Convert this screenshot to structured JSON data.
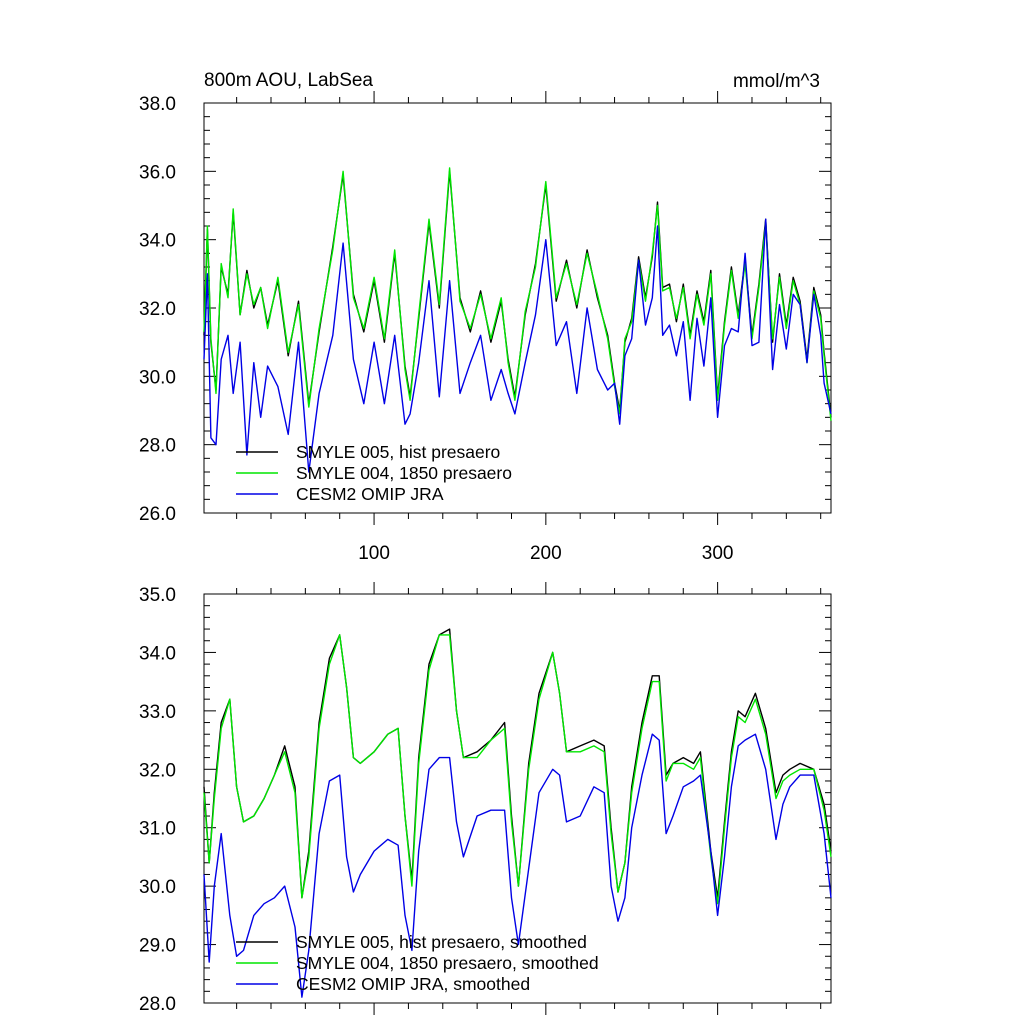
{
  "chart_data": [
    {
      "type": "line",
      "title": "800m AOU, LabSea",
      "units": "mmol/m^3",
      "xlim": [
        1,
        366
      ],
      "ylim": [
        26,
        38
      ],
      "x_tick_labels": [
        "100",
        "200",
        "300"
      ],
      "x_tick_values": [
        100,
        200,
        300
      ],
      "y_tick_labels": [
        "26.0",
        "28.0",
        "30.0",
        "32.0",
        "34.0",
        "36.0",
        "38.0"
      ],
      "y_tick_values": [
        26,
        28,
        30,
        32,
        34,
        36,
        38
      ],
      "series": [
        {
          "name": "SMYLE 005, hist presaero",
          "color": "#000000",
          "x": [
            1,
            3,
            5,
            8,
            11,
            15,
            18,
            22,
            26,
            30,
            34,
            38,
            44,
            50,
            56,
            62,
            68,
            76,
            82,
            88,
            94,
            100,
            106,
            112,
            118,
            121,
            126,
            132,
            138,
            144,
            150,
            156,
            162,
            168,
            174,
            178,
            182,
            188,
            194,
            200,
            206,
            212,
            218,
            224,
            230,
            236,
            240,
            243,
            246,
            250,
            254,
            258,
            262,
            265,
            268,
            272,
            276,
            280,
            284,
            288,
            292,
            296,
            300,
            304,
            308,
            312,
            316,
            320,
            324,
            328,
            332,
            336,
            340,
            344,
            348,
            352,
            356,
            360,
            362,
            366
          ],
          "y": [
            31.2,
            34.3,
            31.0,
            29.6,
            33.2,
            32.4,
            34.8,
            31.8,
            33.1,
            32.0,
            32.6,
            31.5,
            32.8,
            30.6,
            32.2,
            29.2,
            31.3,
            33.8,
            35.9,
            32.4,
            31.3,
            32.8,
            31.0,
            33.6,
            30.3,
            29.4,
            31.7,
            34.5,
            32.0,
            36.0,
            32.3,
            31.3,
            32.5,
            31.0,
            32.2,
            30.5,
            29.4,
            31.8,
            33.3,
            35.6,
            32.2,
            33.4,
            32.0,
            33.7,
            32.3,
            31.2,
            29.8,
            29.0,
            31.0,
            31.7,
            33.5,
            32.3,
            33.5,
            35.1,
            32.6,
            32.7,
            31.6,
            32.7,
            31.2,
            32.5,
            31.6,
            33.1,
            29.4,
            31.6,
            33.2,
            31.8,
            33.4,
            31.2,
            32.7,
            34.6,
            31.0,
            33.0,
            31.5,
            32.9,
            32.2,
            30.5,
            32.6,
            31.8,
            30.7,
            28.8
          ]
        },
        {
          "name": "SMYLE 004, 1850 presaero",
          "color": "#00e600",
          "x": [
            1,
            3,
            5,
            8,
            11,
            15,
            18,
            22,
            26,
            30,
            34,
            38,
            44,
            50,
            56,
            62,
            68,
            76,
            82,
            88,
            94,
            100,
            106,
            112,
            118,
            121,
            126,
            132,
            138,
            144,
            150,
            156,
            162,
            168,
            174,
            178,
            182,
            188,
            194,
            200,
            206,
            212,
            218,
            224,
            230,
            236,
            240,
            243,
            246,
            250,
            254,
            258,
            262,
            265,
            268,
            272,
            276,
            280,
            284,
            288,
            292,
            296,
            300,
            304,
            308,
            312,
            316,
            320,
            324,
            328,
            332,
            336,
            340,
            344,
            348,
            352,
            356,
            360,
            362,
            366
          ],
          "y": [
            31.3,
            34.4,
            31.1,
            29.5,
            33.3,
            32.3,
            34.9,
            31.8,
            33.0,
            32.1,
            32.6,
            31.4,
            32.9,
            30.7,
            32.1,
            29.1,
            31.4,
            33.7,
            36.0,
            32.3,
            31.4,
            32.9,
            31.1,
            33.7,
            30.2,
            29.3,
            31.8,
            34.6,
            32.1,
            36.1,
            32.2,
            31.4,
            32.4,
            31.1,
            32.3,
            30.4,
            29.3,
            31.9,
            33.2,
            35.7,
            32.3,
            33.3,
            32.1,
            33.6,
            32.4,
            31.1,
            29.7,
            28.9,
            31.1,
            31.6,
            33.4,
            32.2,
            33.6,
            35.0,
            32.5,
            32.6,
            31.7,
            32.6,
            31.1,
            32.4,
            31.5,
            33.0,
            29.3,
            31.5,
            33.1,
            31.7,
            33.3,
            31.1,
            32.6,
            34.5,
            31.1,
            32.9,
            31.4,
            32.8,
            32.1,
            30.4,
            32.5,
            31.7,
            30.6,
            28.7
          ]
        },
        {
          "name": "CESM2 OMIP JRA",
          "color": "#0000e6",
          "x": [
            1,
            3,
            5,
            8,
            11,
            15,
            18,
            22,
            26,
            30,
            34,
            38,
            44,
            50,
            56,
            62,
            68,
            76,
            82,
            88,
            94,
            100,
            106,
            112,
            118,
            121,
            126,
            132,
            138,
            144,
            150,
            156,
            162,
            168,
            174,
            178,
            182,
            188,
            194,
            200,
            206,
            212,
            218,
            224,
            230,
            236,
            240,
            243,
            246,
            250,
            254,
            258,
            262,
            265,
            268,
            272,
            276,
            280,
            284,
            288,
            292,
            296,
            300,
            304,
            308,
            312,
            316,
            320,
            324,
            328,
            332,
            336,
            340,
            344,
            348,
            352,
            356,
            360,
            362,
            366
          ],
          "y": [
            30.5,
            33.0,
            28.2,
            28.0,
            30.5,
            31.2,
            29.5,
            31.0,
            27.7,
            30.4,
            28.8,
            30.3,
            29.7,
            28.3,
            31.0,
            27.2,
            29.5,
            31.2,
            33.9,
            30.5,
            29.2,
            31.0,
            29.2,
            31.2,
            28.6,
            28.9,
            30.4,
            32.8,
            29.4,
            32.8,
            29.5,
            30.4,
            31.2,
            29.3,
            30.2,
            29.5,
            28.9,
            30.4,
            31.8,
            34.0,
            30.9,
            31.6,
            29.5,
            32.0,
            30.2,
            29.6,
            29.8,
            28.6,
            30.6,
            31.1,
            33.4,
            31.5,
            32.3,
            34.4,
            31.2,
            31.5,
            30.6,
            31.6,
            29.3,
            31.7,
            30.3,
            32.3,
            28.8,
            30.9,
            31.4,
            31.3,
            33.6,
            30.9,
            31.0,
            34.6,
            30.2,
            32.1,
            30.8,
            32.4,
            32.1,
            30.4,
            32.4,
            31.2,
            29.8,
            28.9
          ]
        }
      ]
    },
    {
      "type": "line",
      "title": "",
      "xlim": [
        1,
        366
      ],
      "ylim": [
        28,
        35
      ],
      "y_tick_labels": [
        "28.0",
        "29.0",
        "30.0",
        "31.0",
        "32.0",
        "33.0",
        "34.0",
        "35.0"
      ],
      "y_tick_values": [
        28,
        29,
        30,
        31,
        32,
        33,
        34,
        35
      ],
      "series": [
        {
          "name": "SMYLE 005, hist presaero, smoothed",
          "color": "#000000",
          "x": [
            1,
            4,
            7,
            11,
            16,
            20,
            24,
            30,
            36,
            42,
            48,
            54,
            58,
            62,
            68,
            74,
            80,
            84,
            88,
            92,
            100,
            108,
            114,
            118,
            122,
            126,
            132,
            138,
            144,
            148,
            152,
            160,
            168,
            176,
            180,
            184,
            190,
            196,
            204,
            208,
            212,
            220,
            228,
            234,
            238,
            242,
            246,
            250,
            256,
            262,
            266,
            270,
            274,
            280,
            286,
            290,
            296,
            300,
            304,
            308,
            312,
            316,
            322,
            328,
            334,
            338,
            342,
            348,
            356,
            362,
            366
          ],
          "y": [
            31.7,
            30.4,
            31.6,
            32.8,
            33.2,
            31.7,
            31.1,
            31.2,
            31.5,
            31.9,
            32.4,
            31.7,
            29.8,
            30.6,
            32.8,
            33.9,
            34.3,
            33.4,
            32.2,
            32.1,
            32.3,
            32.6,
            32.7,
            31.2,
            30.1,
            32.2,
            33.8,
            34.3,
            34.4,
            33.0,
            32.2,
            32.3,
            32.5,
            32.8,
            31.2,
            30.0,
            32.1,
            33.3,
            34.0,
            33.3,
            32.3,
            32.4,
            32.5,
            32.4,
            31.0,
            29.9,
            30.4,
            31.7,
            32.8,
            33.6,
            33.6,
            31.9,
            32.1,
            32.2,
            32.1,
            32.3,
            30.6,
            29.8,
            31.1,
            32.3,
            33.0,
            32.9,
            33.3,
            32.7,
            31.6,
            31.9,
            32.0,
            32.1,
            32.0,
            31.4,
            30.6
          ]
        },
        {
          "name": "SMYLE 004, 1850 presaero, smoothed",
          "color": "#00e600",
          "x": [
            1,
            4,
            7,
            11,
            16,
            20,
            24,
            30,
            36,
            42,
            48,
            54,
            58,
            62,
            68,
            74,
            80,
            84,
            88,
            92,
            100,
            108,
            114,
            118,
            122,
            126,
            132,
            138,
            144,
            148,
            152,
            160,
            168,
            176,
            180,
            184,
            190,
            196,
            204,
            208,
            212,
            220,
            228,
            234,
            238,
            242,
            246,
            250,
            256,
            262,
            266,
            270,
            274,
            280,
            286,
            290,
            296,
            300,
            304,
            308,
            312,
            316,
            322,
            328,
            334,
            338,
            342,
            348,
            356,
            362,
            366
          ],
          "y": [
            31.6,
            30.4,
            31.5,
            32.7,
            33.2,
            31.7,
            31.1,
            31.2,
            31.5,
            31.9,
            32.3,
            31.6,
            29.8,
            30.5,
            32.7,
            33.8,
            34.3,
            33.4,
            32.2,
            32.1,
            32.3,
            32.6,
            32.7,
            31.2,
            30.0,
            32.1,
            33.7,
            34.3,
            34.3,
            33.0,
            32.2,
            32.2,
            32.5,
            32.7,
            31.1,
            30.0,
            32.0,
            33.2,
            34.0,
            33.3,
            32.3,
            32.3,
            32.4,
            32.3,
            30.9,
            29.9,
            30.4,
            31.6,
            32.7,
            33.5,
            33.5,
            31.8,
            32.1,
            32.1,
            32.0,
            32.2,
            30.5,
            29.7,
            31.0,
            32.2,
            32.9,
            32.8,
            33.2,
            32.6,
            31.5,
            31.8,
            31.9,
            32.0,
            32.0,
            31.3,
            30.5
          ]
        },
        {
          "name": "CESM2 OMIP JRA, smoothed",
          "color": "#0000e6",
          "x": [
            1,
            4,
            7,
            11,
            16,
            20,
            24,
            30,
            36,
            42,
            48,
            54,
            58,
            62,
            68,
            74,
            80,
            84,
            88,
            92,
            100,
            108,
            114,
            118,
            122,
            126,
            132,
            138,
            144,
            148,
            152,
            160,
            168,
            176,
            180,
            184,
            190,
            196,
            204,
            208,
            212,
            220,
            228,
            234,
            238,
            242,
            246,
            250,
            256,
            262,
            266,
            270,
            274,
            280,
            286,
            290,
            296,
            300,
            304,
            308,
            312,
            316,
            322,
            328,
            334,
            338,
            342,
            348,
            356,
            362,
            366
          ],
          "y": [
            30.2,
            28.7,
            30.0,
            30.9,
            29.5,
            28.8,
            28.9,
            29.5,
            29.7,
            29.8,
            30.0,
            29.3,
            28.1,
            28.9,
            30.9,
            31.8,
            31.9,
            30.5,
            29.9,
            30.2,
            30.6,
            30.8,
            30.7,
            29.5,
            28.9,
            30.6,
            32.0,
            32.2,
            32.2,
            31.1,
            30.5,
            31.2,
            31.3,
            31.3,
            29.8,
            29.0,
            30.3,
            31.6,
            32.0,
            31.9,
            31.1,
            31.2,
            31.7,
            31.6,
            30.0,
            29.4,
            29.8,
            31.0,
            31.9,
            32.6,
            32.5,
            30.9,
            31.2,
            31.7,
            31.8,
            31.9,
            30.6,
            29.5,
            30.5,
            31.7,
            32.4,
            32.5,
            32.6,
            32.0,
            30.8,
            31.4,
            31.7,
            31.9,
            31.9,
            30.9,
            29.8
          ]
        }
      ]
    }
  ]
}
